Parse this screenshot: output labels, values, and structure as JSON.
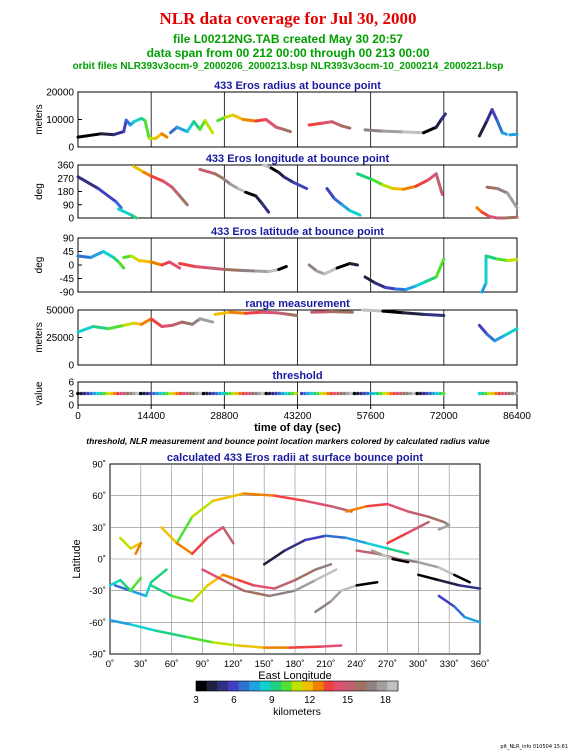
{
  "header": {
    "title": "NLR data coverage for Jul 30, 2000",
    "file_line": "file L00212NG.TAB created May 30 20:57",
    "span_line": "data span from 00 212 00:00 through 00 213 00:00",
    "orbit_line": "orbit files NLR393v3ocm-9_2000206_2000213.bsp NLR393v3ocm-10_2000214_2000221.bsp"
  },
  "caption": "threshold, NLR measurement and bounce point location markers colored by calculated radius value",
  "footer": "plt_NLR_info 010504 15:61",
  "colors": {
    "title": "#e00000",
    "subtitle": "#00a000",
    "panel_title": "#1a1aa0",
    "grid": "#000000"
  },
  "chart_data": [
    {
      "type": "line",
      "title": "433 Eros radius at bounce point",
      "ylabel": "meters",
      "ylim": [
        0,
        25000
      ],
      "yticks": [
        "20000",
        "10000",
        "0"
      ],
      "series": [
        {
          "x": [
            0,
            4500,
            7000,
            9000,
            9500,
            10300,
            11000,
            12500,
            13200,
            14000,
            15200,
            16500,
            17500
          ],
          "values": [
            4500,
            6000,
            5600,
            7000,
            12200,
            10000,
            11500,
            13000,
            12000,
            4000,
            3800,
            6000,
            4500
          ]
        },
        {
          "x": [
            18200,
            19500,
            21500,
            22800,
            24000,
            25000,
            26500
          ],
          "values": [
            6500,
            9000,
            7000,
            11500,
            8000,
            12000,
            6500
          ]
        },
        {
          "x": [
            27500,
            29000,
            30500,
            32500,
            35000,
            37000,
            39000,
            40500,
            41800
          ],
          "values": [
            12000,
            13500,
            14500,
            12500,
            11800,
            12500,
            9000,
            8000,
            7000
          ]
        },
        {
          "x": [
            45500,
            48000,
            50000,
            52000,
            53500
          ],
          "values": [
            10000,
            10800,
            11500,
            9500,
            8600
          ]
        },
        {
          "x": [
            56500,
            60000,
            64000,
            68000,
            70500,
            71500,
            72300
          ],
          "values": [
            7800,
            7200,
            6900,
            6500,
            9000,
            12500,
            15000
          ]
        },
        {
          "x": [
            79000,
            80500,
            81500,
            82500,
            83500,
            84300
          ],
          "values": [
            5000,
            12000,
            17000,
            12000,
            6500,
            5800
          ]
        },
        {
          "x": [
            85000,
            86400
          ],
          "values": [
            5500,
            5800
          ]
        }
      ]
    },
    {
      "type": "line",
      "title": "433 Eros longitude at bounce point",
      "ylabel": "deg",
      "ylim": [
        0,
        360
      ],
      "yticks": [
        "360",
        "270",
        "180",
        "90",
        "0"
      ],
      "series": [
        {
          "x": [
            0,
            4000,
            7500,
            8500
          ],
          "values": [
            280,
            200,
            110,
            70
          ]
        },
        {
          "x": [
            8000,
            10500,
            11500
          ],
          "values": [
            60,
            20,
            0
          ]
        },
        {
          "x": [
            11000,
            13000,
            14400,
            16800,
            18500,
            20000,
            21500
          ],
          "values": [
            350,
            310,
            285,
            250,
            210,
            150,
            90
          ]
        },
        {
          "x": [
            24000,
            27000,
            28500,
            30000,
            31500,
            33000,
            35000,
            36200,
            37500
          ],
          "values": [
            330,
            300,
            270,
            230,
            200,
            175,
            150,
            100,
            40
          ]
        },
        {
          "x": [
            36500,
            38000,
            39500,
            40500,
            42500,
            45000
          ],
          "values": [
            360,
            340,
            310,
            280,
            240,
            200
          ]
        },
        {
          "x": [
            49000,
            50500,
            52000,
            53500,
            55500
          ],
          "values": [
            200,
            130,
            90,
            50,
            20
          ]
        },
        {
          "x": [
            55000,
            58000,
            60000,
            62000,
            64000,
            66500,
            69000,
            70500,
            71700
          ],
          "values": [
            300,
            260,
            225,
            200,
            195,
            215,
            260,
            300,
            160
          ]
        },
        {
          "x": [
            78500,
            79500,
            81000,
            82500,
            84000,
            86400
          ],
          "values": [
            70,
            40,
            10,
            0,
            0,
            5
          ]
        },
        {
          "x": [
            80500,
            82500,
            84500,
            86400
          ],
          "values": [
            210,
            200,
            170,
            70
          ]
        }
      ]
    },
    {
      "type": "line",
      "title": "433 Eros latitude at bounce point",
      "ylabel": "deg",
      "ylim": [
        -90,
        90
      ],
      "yticks": [
        "90",
        "45",
        "0",
        "-45",
        "-90"
      ],
      "series": [
        {
          "x": [
            0,
            2500,
            5000,
            7000,
            8000,
            9000
          ],
          "values": [
            30,
            25,
            45,
            25,
            10,
            -10
          ]
        },
        {
          "x": [
            9000,
            10500,
            12000,
            14400,
            16500,
            18000,
            20000
          ],
          "values": [
            25,
            30,
            15,
            10,
            0,
            10,
            -10
          ]
        },
        {
          "x": [
            20000,
            23000,
            26000,
            29000,
            32000,
            35000,
            37500,
            39500,
            41000
          ],
          "values": [
            5,
            -5,
            -10,
            -15,
            -18,
            -20,
            -22,
            -15,
            -5
          ]
        },
        {
          "x": [
            45500,
            47000,
            48500,
            51000,
            53500,
            55000
          ],
          "values": [
            0,
            -20,
            -30,
            -10,
            5,
            0
          ]
        },
        {
          "x": [
            56500,
            58500,
            60500,
            62500,
            64500,
            66500,
            68500,
            70500,
            72000
          ],
          "values": [
            -40,
            -60,
            -75,
            -80,
            -82,
            -70,
            -55,
            -40,
            20
          ]
        },
        {
          "x": [
            79500,
            80300,
            80300,
            82500,
            84500,
            86400
          ],
          "values": [
            -90,
            -60,
            30,
            20,
            15,
            18
          ]
        }
      ]
    },
    {
      "type": "line",
      "title": "range measurement",
      "ylabel": "meters",
      "ylim": [
        0,
        50000
      ],
      "yticks": [
        "50000",
        "25000",
        "0"
      ],
      "series": [
        {
          "x": [
            0,
            3000,
            6000,
            9000,
            11000,
            12500,
            14400,
            16500,
            18500,
            20500,
            22500,
            24000,
            26500
          ],
          "values": [
            30000,
            35000,
            33000,
            36000,
            38000,
            37000,
            42000,
            35000,
            36000,
            39000,
            37000,
            42000,
            39000
          ]
        },
        {
          "x": [
            27000,
            30000,
            33000,
            36000,
            39000,
            41500,
            43000
          ],
          "values": [
            46000,
            48000,
            47000,
            48000,
            47500,
            46000,
            45000
          ]
        },
        {
          "x": [
            46000,
            50000,
            54000
          ],
          "values": [
            48000,
            48500,
            48000
          ]
        },
        {
          "x": [
            56000,
            60000,
            64000,
            68000,
            72000
          ],
          "values": [
            50000,
            49000,
            47500,
            46000,
            45000
          ]
        },
        {
          "x": [
            79000,
            80500,
            82000,
            84000,
            86400
          ],
          "values": [
            36000,
            28000,
            22000,
            27000,
            33000
          ]
        }
      ]
    },
    {
      "type": "scatter",
      "title": "threshold",
      "ylabel": "value",
      "xlabel": "time of day (sec)",
      "ylim": [
        0,
        6
      ],
      "yticks": [
        "6",
        "3",
        "0"
      ],
      "xticks": [
        "0",
        "14400",
        "28800",
        "43200",
        "57600",
        "72000",
        "86400"
      ],
      "x_range": [
        0,
        86400
      ],
      "series": [
        {
          "x": [
            0,
            43100
          ],
          "values": [
            3,
            3
          ]
        },
        {
          "x": [
            44000,
            72400
          ],
          "values": [
            3,
            3
          ]
        },
        {
          "x": [
            79000,
            86400
          ],
          "values": [
            3,
            3
          ]
        }
      ]
    },
    {
      "type": "scatter",
      "title": "calculated 433 Eros radii at surface bounce point",
      "xlabel": "East Longitude",
      "ylabel": "Latitude",
      "xlim": [
        0,
        360
      ],
      "ylim": [
        -90,
        90
      ],
      "xticks": [
        "0˚",
        "30˚",
        "60˚",
        "90˚",
        "120˚",
        "150˚",
        "180˚",
        "210˚",
        "240˚",
        "270˚",
        "300˚",
        "330˚",
        "360˚"
      ],
      "yticks": [
        "90˚",
        "60˚",
        "30˚",
        "0˚",
        "-30˚",
        "-60˚",
        "-90˚"
      ],
      "series": [
        {
          "x": [
            0,
            20,
            45,
            75,
            100,
            125,
            150,
            175,
            205,
            225
          ],
          "values": [
            -58,
            -62,
            -68,
            -74,
            -79,
            -82,
            -84,
            -84,
            -83,
            -82
          ]
        },
        {
          "x": [
            65,
            80,
            100,
            130,
            160,
            190,
            215,
            235
          ],
          "values": [
            15,
            40,
            55,
            62,
            60,
            55,
            50,
            45
          ]
        },
        {
          "x": [
            230,
            250,
            270,
            290,
            310,
            325,
            330,
            320
          ],
          "values": [
            45,
            50,
            52,
            45,
            40,
            35,
            32,
            28
          ]
        },
        {
          "x": [
            240,
            260,
            280,
            300,
            320,
            335,
            350
          ],
          "values": [
            8,
            5,
            0,
            -3,
            -8,
            -15,
            -22
          ]
        },
        {
          "x": [
            255,
            265,
            275,
            290
          ],
          "values": [
            8,
            4,
            0,
            -3
          ]
        },
        {
          "x": [
            150,
            170,
            190,
            210,
            230,
            250,
            270,
            290
          ],
          "values": [
            -5,
            8,
            18,
            22,
            20,
            15,
            10,
            5
          ]
        },
        {
          "x": [
            5,
            20,
            35,
            40,
            55
          ],
          "values": [
            -25,
            -30,
            -35,
            -22,
            -10
          ]
        },
        {
          "x": [
            40,
            60,
            80,
            95,
            110,
            125,
            140,
            160,
            180,
            200,
            215
          ],
          "values": [
            -25,
            -35,
            -40,
            -25,
            -15,
            -20,
            -25,
            -28,
            -20,
            -10,
            -5
          ]
        },
        {
          "x": [
            50,
            65,
            80,
            95,
            110,
            120
          ],
          "values": [
            30,
            15,
            5,
            20,
            30,
            15
          ]
        },
        {
          "x": [
            90,
            110,
            130,
            155,
            180,
            200,
            220
          ],
          "values": [
            -10,
            -20,
            -30,
            -35,
            -30,
            -20,
            -10
          ]
        },
        {
          "x": [
            200,
            215,
            225,
            240,
            260
          ],
          "values": [
            -50,
            -40,
            -30,
            -25,
            -22
          ]
        },
        {
          "x": [
            300,
            320,
            340,
            360
          ],
          "values": [
            -15,
            -20,
            -25,
            -28
          ]
        },
        {
          "x": [
            320,
            335,
            345,
            360
          ],
          "values": [
            -35,
            -45,
            -55,
            -60
          ]
        },
        {
          "x": [
            0,
            10,
            20,
            30
          ],
          "values": [
            -25,
            -20,
            -30,
            -18
          ]
        },
        {
          "x": [
            10,
            20,
            30,
            25
          ],
          "values": [
            20,
            10,
            15,
            5
          ]
        },
        {
          "x": [
            270,
            290,
            300,
            310
          ],
          "values": [
            15,
            25,
            30,
            35
          ]
        }
      ]
    }
  ],
  "colorbar": {
    "label": "kilometers",
    "ticks": [
      "3",
      "6",
      "9",
      "12",
      "15",
      "18"
    ],
    "range": [
      3,
      19
    ],
    "colors": [
      "#000000",
      "#202040",
      "#303080",
      "#4040c0",
      "#3070d0",
      "#20a0e0",
      "#10d0d0",
      "#20d080",
      "#50e030",
      "#c0e000",
      "#f0c000",
      "#f08000",
      "#f04040",
      "#e05070",
      "#c06070",
      "#a07060",
      "#908080",
      "#a0a0a0",
      "#c0c0c0"
    ]
  }
}
